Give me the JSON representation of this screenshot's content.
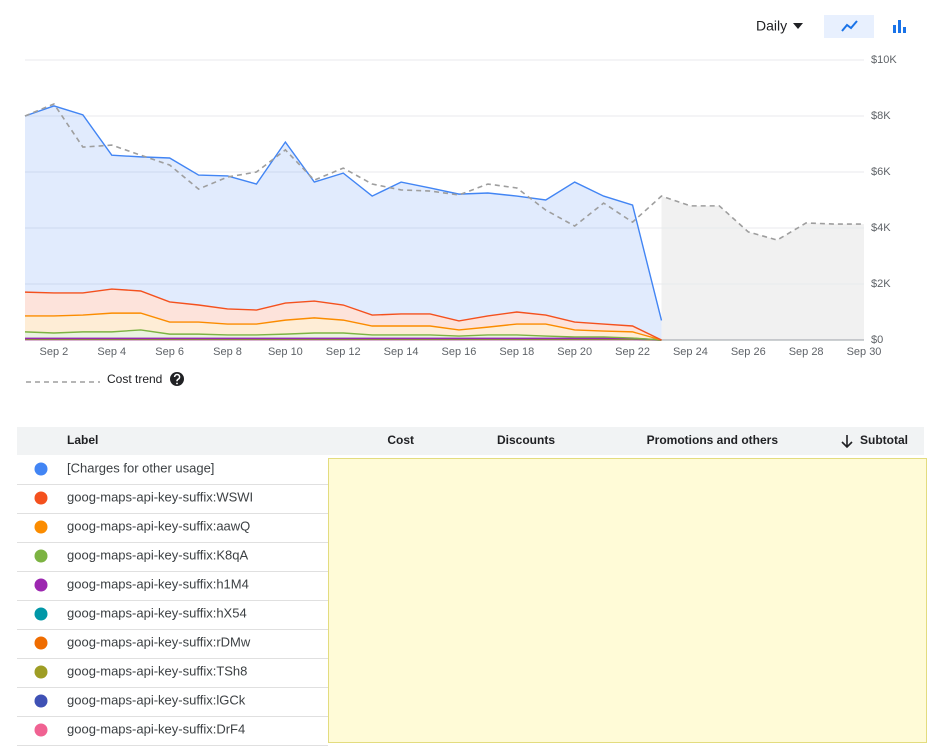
{
  "controls": {
    "interval": "Daily"
  },
  "chart_data": {
    "type": "area",
    "stacked": true,
    "categories": [
      null,
      "Sep 2",
      null,
      "Sep 4",
      null,
      "Sep 6",
      null,
      "Sep 8",
      null,
      "Sep 10",
      null,
      "Sep 12",
      null,
      "Sep 14",
      null,
      "Sep 16",
      null,
      "Sep 18",
      null,
      "Sep 20",
      null,
      "Sep 22",
      null,
      "Sep 24",
      null,
      "Sep 26",
      null,
      "Sep 28",
      null,
      "Sep 30"
    ],
    "ylim": [
      0,
      10000
    ],
    "yticks": [
      {
        "value": 0,
        "label": "$0"
      },
      {
        "value": 2000,
        "label": "$2K"
      },
      {
        "value": 4000,
        "label": "$4K"
      },
      {
        "value": 6000,
        "label": "$6K"
      },
      {
        "value": 8000,
        "label": "$8K"
      },
      {
        "value": 10000,
        "label": "$10K"
      }
    ],
    "grid": true,
    "series": [
      {
        "name": "[Charges for other usage]",
        "color": "#4285f4",
        "values": [
          6290,
          6680,
          6360,
          4780,
          4790,
          5140,
          4640,
          4750,
          4500,
          5750,
          4250,
          4710,
          4250,
          4710,
          4500,
          4530,
          4390,
          4140,
          4110,
          5000,
          4570,
          4320,
          700,
          null,
          null,
          null,
          null,
          null,
          null,
          null
        ]
      },
      {
        "name": "goog-maps-api-key-suffix:WSWI",
        "color": "#f4511e",
        "values": [
          850,
          820,
          790,
          860,
          790,
          720,
          610,
          540,
          500,
          610,
          600,
          540,
          390,
          430,
          430,
          320,
          400,
          430,
          320,
          280,
          250,
          210,
          0,
          null,
          null,
          null,
          null,
          null,
          null,
          null
        ]
      },
      {
        "name": "goog-maps-api-key-suffix:aawQ",
        "color": "#fb8c00",
        "values": [
          570,
          610,
          600,
          670,
          600,
          430,
          430,
          390,
          390,
          500,
          540,
          460,
          320,
          320,
          320,
          220,
          280,
          390,
          430,
          250,
          210,
          220,
          0,
          null,
          null,
          null,
          null,
          null,
          null,
          null
        ]
      },
      {
        "name": "goog-maps-api-key-suffix:K8qA",
        "color": "#7cb342",
        "values": [
          230,
          190,
          230,
          230,
          300,
          150,
          150,
          120,
          120,
          150,
          190,
          190,
          120,
          120,
          120,
          80,
          120,
          120,
          80,
          50,
          50,
          10,
          0,
          null,
          null,
          null,
          null,
          null,
          null,
          null
        ]
      },
      {
        "name": "goog-maps-api-key-suffix:h1M4",
        "color": "#9c27b0",
        "values": [
          10,
          10,
          10,
          10,
          10,
          10,
          10,
          10,
          10,
          10,
          10,
          10,
          10,
          10,
          10,
          10,
          10,
          10,
          10,
          10,
          10,
          10,
          0,
          null,
          null,
          null,
          null,
          null,
          null,
          null
        ]
      },
      {
        "name": "goog-maps-api-key-suffix:hX54",
        "color": "#0097a7",
        "values": [
          10,
          10,
          10,
          10,
          10,
          10,
          10,
          10,
          10,
          10,
          10,
          10,
          10,
          10,
          10,
          10,
          10,
          10,
          10,
          10,
          10,
          10,
          0,
          null,
          null,
          null,
          null,
          null,
          null,
          null
        ]
      },
      {
        "name": "goog-maps-api-key-suffix:rDMw",
        "color": "#ef6c00",
        "values": [
          10,
          10,
          10,
          10,
          10,
          10,
          10,
          10,
          10,
          10,
          10,
          10,
          10,
          10,
          10,
          10,
          10,
          10,
          10,
          10,
          10,
          10,
          0,
          null,
          null,
          null,
          null,
          null,
          null,
          null
        ]
      },
      {
        "name": "goog-maps-api-key-suffix:TSh8",
        "color": "#9e9d24",
        "values": [
          10,
          10,
          10,
          10,
          10,
          10,
          10,
          10,
          10,
          10,
          10,
          10,
          10,
          10,
          10,
          10,
          10,
          10,
          10,
          10,
          10,
          10,
          0,
          null,
          null,
          null,
          null,
          null,
          null,
          null
        ]
      },
      {
        "name": "goog-maps-api-key-suffix:lGCk",
        "color": "#3f51b5",
        "values": [
          10,
          10,
          10,
          10,
          10,
          10,
          10,
          10,
          10,
          10,
          10,
          10,
          10,
          10,
          10,
          10,
          10,
          10,
          10,
          10,
          10,
          10,
          0,
          null,
          null,
          null,
          null,
          null,
          null,
          null
        ]
      },
      {
        "name": "goog-maps-api-key-suffix:DrF4",
        "color": "#f06292",
        "values": [
          10,
          10,
          10,
          10,
          10,
          10,
          10,
          10,
          10,
          10,
          10,
          10,
          10,
          10,
          10,
          10,
          10,
          10,
          10,
          10,
          10,
          10,
          0,
          null,
          null,
          null,
          null,
          null,
          null,
          null
        ]
      }
    ],
    "trend": {
      "name": "Cost trend",
      "color": "#9e9e9e",
      "values": [
        8000,
        8430,
        6890,
        6960,
        6600,
        6250,
        5390,
        5820,
        6000,
        6790,
        5710,
        6140,
        5570,
        5360,
        5320,
        5180,
        5570,
        5430,
        4640,
        4070,
        4890,
        4210,
        5140,
        4790,
        4790,
        3860,
        3570,
        4180,
        4140,
        4140
      ]
    }
  },
  "table": {
    "columns": [
      "Label",
      "Cost",
      "Discounts",
      "Promotions and others",
      "Subtotal"
    ]
  }
}
